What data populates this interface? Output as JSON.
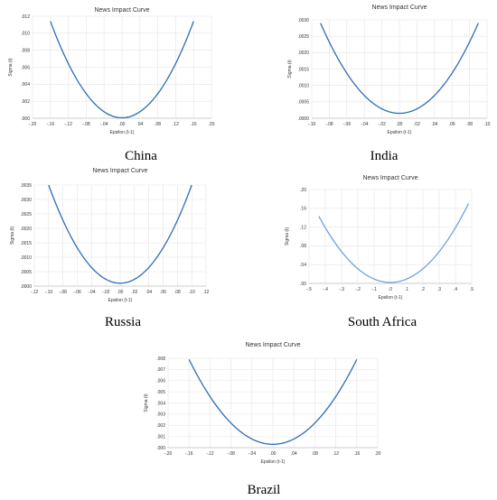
{
  "colors": {
    "curve_dark": "#2e6db4",
    "curve_light": "#6fa3d8",
    "grid": "#e4e4e4"
  },
  "chart_data": [
    {
      "type": "line",
      "title": "News Impact Curve",
      "caption": "China",
      "xlabel": "Epsilon (t-1)",
      "ylabel": "Sigma (t)",
      "xlim": [
        -0.2,
        0.2
      ],
      "ylim": [
        0,
        0.012
      ],
      "xticks": [
        -0.2,
        -0.16,
        -0.12,
        -0.08,
        -0.04,
        0.0,
        0.04,
        0.08,
        0.12,
        0.16,
        0.2
      ],
      "xticklabels": [
        "-.20",
        "-.16",
        "-.12",
        "-.08",
        "-.04",
        ".00",
        ".04",
        ".08",
        ".12",
        ".16",
        ".20"
      ],
      "yticks": [
        0,
        0.002,
        0.004,
        0.006,
        0.008,
        0.01,
        0.012
      ],
      "yticklabels": [
        ".000",
        ".002",
        ".004",
        ".006",
        ".008",
        ".010",
        ".012"
      ],
      "curve": {
        "x_range": [
          -0.16,
          0.16
        ],
        "y_min": 5e-05,
        "y_edge": 0.0114,
        "min_at": 0.0
      },
      "color": "curve_dark"
    },
    {
      "type": "line",
      "title": "News Impact Curve",
      "caption": "India",
      "xlabel": "Epsilon (t-1)",
      "ylabel": "Sigma (t)",
      "xlim": [
        -0.1,
        0.1
      ],
      "ylim": [
        0,
        0.003
      ],
      "xticks": [
        -0.1,
        -0.08,
        -0.06,
        -0.04,
        -0.02,
        0.0,
        0.02,
        0.04,
        0.06,
        0.08,
        0.1
      ],
      "xticklabels": [
        "-.10",
        "-.08",
        "-.06",
        "-.04",
        "-.02",
        ".00",
        ".02",
        ".04",
        ".06",
        ".08",
        ".10"
      ],
      "yticks": [
        0,
        0.0005,
        0.001,
        0.0015,
        0.002,
        0.0025,
        0.003
      ],
      "yticklabels": [
        ".0000",
        ".0005",
        ".0010",
        ".0015",
        ".0020",
        ".0025",
        ".0030"
      ],
      "curve": {
        "x_range": [
          -0.09,
          0.09
        ],
        "y_min": 0.00015,
        "y_edge": 0.0029,
        "min_at": 0.0
      },
      "color": "curve_dark"
    },
    {
      "type": "line",
      "title": "News Impact Curve",
      "caption": "Russia",
      "xlabel": "Epsilon (t-1)",
      "ylabel": "Sigma (t)",
      "xlim": [
        -0.12,
        0.12
      ],
      "ylim": [
        0,
        0.0035
      ],
      "xticks": [
        -0.12,
        -0.1,
        -0.08,
        -0.06,
        -0.04,
        -0.02,
        0.0,
        0.02,
        0.04,
        0.06,
        0.08,
        0.1,
        0.12
      ],
      "xticklabels": [
        "-.12",
        "-.10",
        "-.08",
        "-.06",
        "-.04",
        "-.02",
        ".00",
        ".02",
        ".04",
        ".06",
        ".08",
        ".10",
        ".12"
      ],
      "yticks": [
        0,
        0.0005,
        0.001,
        0.0015,
        0.002,
        0.0025,
        0.003,
        0.0035
      ],
      "yticklabels": [
        ".0000",
        ".0005",
        ".0010",
        ".0015",
        ".0020",
        ".0025",
        ".0030",
        ".0035"
      ],
      "curve": {
        "x_range": [
          -0.1,
          0.1
        ],
        "y_min": 0.0001,
        "y_edge": 0.0035,
        "min_at": 0.0
      },
      "color": "curve_dark"
    },
    {
      "type": "line",
      "title": "News Impact Curve",
      "caption": "South Africa",
      "xlabel": "Epsilon (t-1)",
      "ylabel": "Sigma (t)",
      "xlim": [
        -0.5,
        0.5
      ],
      "ylim": [
        0,
        0.2
      ],
      "xticks": [
        -0.5,
        -0.4,
        -0.3,
        -0.2,
        -0.1,
        0.0,
        0.1,
        0.2,
        0.3,
        0.4,
        0.5
      ],
      "xticklabels": [
        "-.5",
        "-.4",
        "-.3",
        "-.2",
        "-.1",
        ".0",
        ".1",
        ".2",
        ".3",
        ".4",
        ".5"
      ],
      "yticks": [
        0,
        0.04,
        0.08,
        0.12,
        0.16,
        0.2
      ],
      "yticklabels": [
        ".00",
        ".04",
        ".08",
        ".12",
        ".16",
        ".20"
      ],
      "curve": {
        "x_range": [
          -0.44,
          0.48
        ],
        "y_min": 0.002,
        "y_edge": 0.17,
        "min_at": 0.0
      },
      "color": "curve_light"
    },
    {
      "type": "line",
      "title": "News Impact Curve",
      "caption": "Brazil",
      "xlabel": "Epsilon (t-1)",
      "ylabel": "Sigma (t)",
      "xlim": [
        -0.2,
        0.2
      ],
      "ylim": [
        0,
        0.008
      ],
      "xticks": [
        -0.2,
        -0.16,
        -0.12,
        -0.08,
        -0.04,
        0.0,
        0.04,
        0.08,
        0.12,
        0.16,
        0.2
      ],
      "xticklabels": [
        "-.20",
        "-.16",
        "-.12",
        "-.08",
        "-.04",
        ".00",
        ".04",
        ".08",
        ".12",
        ".16",
        ".20"
      ],
      "yticks": [
        0,
        0.001,
        0.002,
        0.003,
        0.004,
        0.005,
        0.006,
        0.007,
        0.008
      ],
      "yticklabels": [
        ".000",
        ".001",
        ".002",
        ".003",
        ".004",
        ".005",
        ".006",
        ".007",
        ".008"
      ],
      "curve": {
        "x_range": [
          -0.16,
          0.16
        ],
        "y_min": 0.0003,
        "y_edge": 0.0079,
        "min_at": 0.0
      },
      "color": "curve_dark"
    }
  ]
}
